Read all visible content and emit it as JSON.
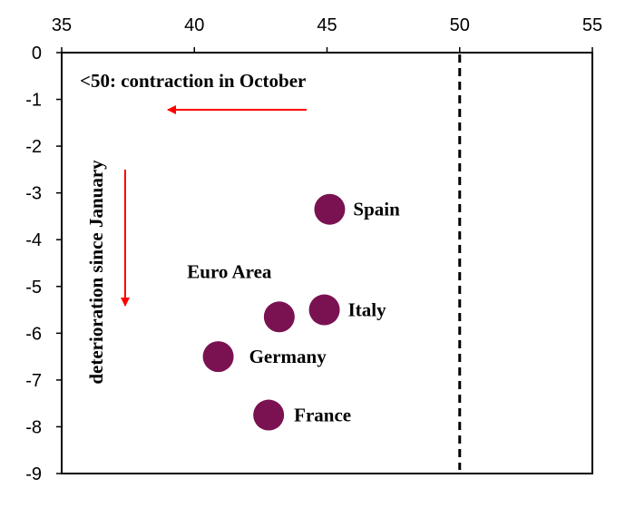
{
  "chart_data": {
    "type": "scatter",
    "title": "",
    "xlabel": "",
    "ylabel": "",
    "xlim": [
      35,
      55
    ],
    "ylim": [
      -9,
      0
    ],
    "xticks": [
      35,
      40,
      45,
      50,
      55
    ],
    "yticks": [
      0,
      -1,
      -2,
      -3,
      -4,
      -5,
      -6,
      -7,
      -8,
      -9
    ],
    "x_axis_position": "top",
    "grid": false,
    "reference_line": {
      "x": 50,
      "style": "dashed"
    },
    "marker_color": "#7a1252",
    "arrow_color": "#ff0000",
    "points": [
      {
        "label": "Spain",
        "x": 45.1,
        "y": -3.35
      },
      {
        "label": "Euro Area",
        "x": 43.2,
        "y": -5.65
      },
      {
        "label": "Italy",
        "x": 44.9,
        "y": -5.5
      },
      {
        "label": "Germany",
        "x": 40.9,
        "y": -6.5
      },
      {
        "label": "France",
        "x": 42.8,
        "y": -7.75
      }
    ],
    "annotations": {
      "horizontal": "<50: contraction in October",
      "vertical": "deterioration since January"
    }
  }
}
